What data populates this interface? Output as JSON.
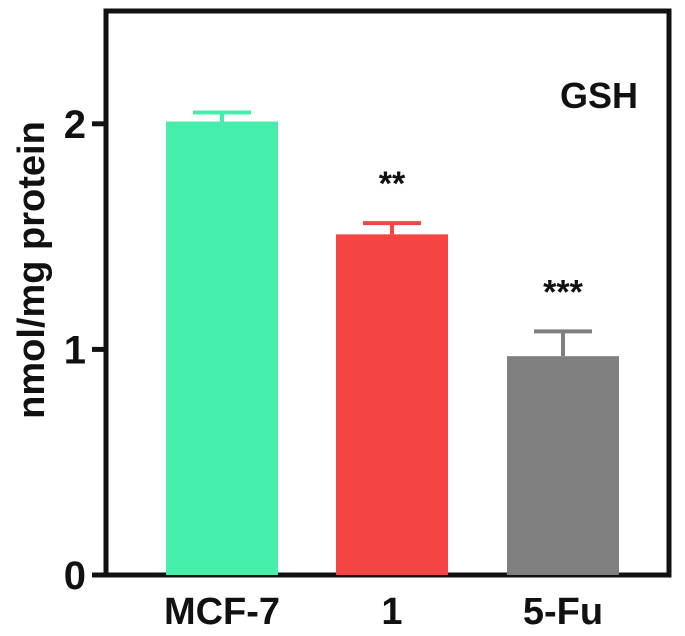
{
  "chart_data": {
    "type": "bar",
    "title": "GSH",
    "ylabel": "nmol/mg protein",
    "xlabel": "",
    "categories": [
      "MCF-7",
      "1",
      "5-Fu"
    ],
    "values": [
      2.01,
      1.51,
      0.97
    ],
    "errors": [
      0.04,
      0.05,
      0.11
    ],
    "annotations": [
      "",
      "**",
      "***"
    ],
    "colors": [
      "#45eeab",
      "#f44545",
      "#808080"
    ],
    "ylim": [
      0,
      2.5
    ],
    "yticks": [
      "0",
      "1",
      "2"
    ],
    "grid": false,
    "legend": "none"
  }
}
